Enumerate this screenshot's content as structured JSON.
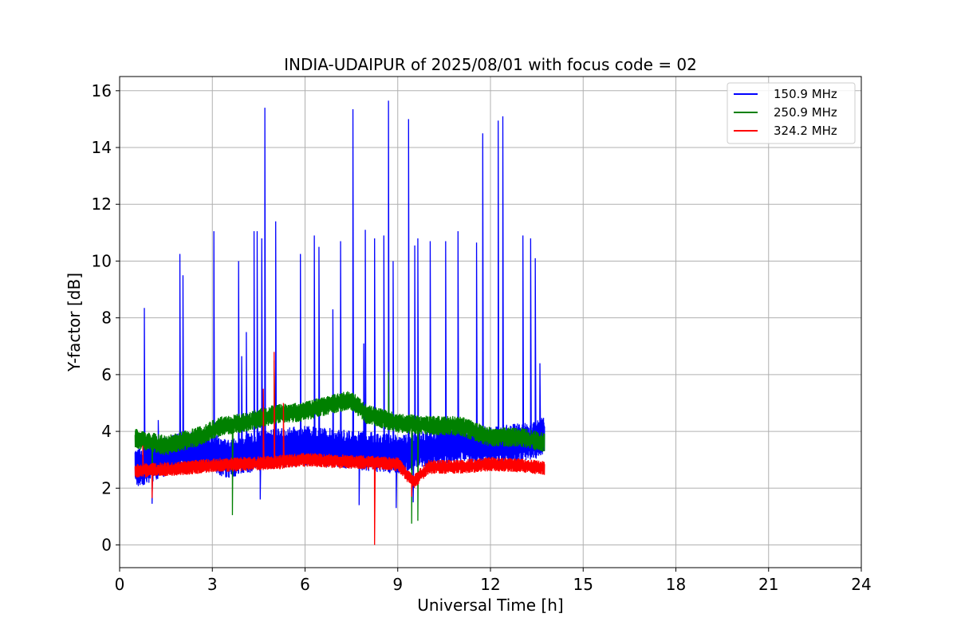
{
  "chart_data": {
    "type": "line",
    "title": "INDIA-UDAIPUR of 2025/08/01 with focus code = 02",
    "xlabel": "Universal Time [h]",
    "ylabel": "Y-factor [dB]",
    "xlim": [
      0,
      24
    ],
    "ylim": [
      -0.8,
      16.5
    ],
    "xticks": [
      0,
      3,
      6,
      9,
      12,
      15,
      18,
      21,
      24
    ],
    "yticks": [
      0,
      2,
      4,
      6,
      8,
      10,
      12,
      14,
      16
    ],
    "grid": true,
    "legend_position": "top-right",
    "data_range_x": [
      0.5,
      13.75
    ],
    "series": [
      {
        "name": "150.9 MHz",
        "color": "#0000ff",
        "baseline": [
          [
            0.5,
            2.7
          ],
          [
            2.0,
            3.3
          ],
          [
            3.0,
            3.3
          ],
          [
            3.5,
            3.0
          ],
          [
            4.0,
            3.2
          ],
          [
            5.0,
            3.4
          ],
          [
            6.0,
            3.5
          ],
          [
            7.0,
            3.4
          ],
          [
            8.0,
            3.3
          ],
          [
            9.0,
            3.2
          ],
          [
            10.0,
            3.4
          ],
          [
            11.0,
            3.6
          ],
          [
            12.0,
            3.5
          ],
          [
            13.0,
            3.6
          ],
          [
            13.75,
            3.8
          ]
        ],
        "spread": 0.7,
        "spikes": [
          [
            0.8,
            8.35
          ],
          [
            1.25,
            4.4
          ],
          [
            1.95,
            10.25
          ],
          [
            2.05,
            9.5
          ],
          [
            3.05,
            11.05
          ],
          [
            3.85,
            10.0
          ],
          [
            3.95,
            6.65
          ],
          [
            4.1,
            7.5
          ],
          [
            4.35,
            11.05
          ],
          [
            4.45,
            11.05
          ],
          [
            4.6,
            10.8
          ],
          [
            4.7,
            15.4
          ],
          [
            5.05,
            11.4
          ],
          [
            5.85,
            10.25
          ],
          [
            6.3,
            10.9
          ],
          [
            6.45,
            10.5
          ],
          [
            6.9,
            8.3
          ],
          [
            7.15,
            10.7
          ],
          [
            7.55,
            15.35
          ],
          [
            7.9,
            7.1
          ],
          [
            7.95,
            11.1
          ],
          [
            8.25,
            10.8
          ],
          [
            8.55,
            10.9
          ],
          [
            8.7,
            15.65
          ],
          [
            8.85,
            10.0
          ],
          [
            9.35,
            15.0
          ],
          [
            9.55,
            10.55
          ],
          [
            9.65,
            10.8
          ],
          [
            10.05,
            10.7
          ],
          [
            10.55,
            10.7
          ],
          [
            10.95,
            11.05
          ],
          [
            11.55,
            10.65
          ],
          [
            11.75,
            14.5
          ],
          [
            12.25,
            14.95
          ],
          [
            12.4,
            15.1
          ],
          [
            13.05,
            10.9
          ],
          [
            13.3,
            10.8
          ],
          [
            13.45,
            10.1
          ],
          [
            13.6,
            6.4
          ]
        ],
        "dips": [
          [
            4.55,
            1.6
          ],
          [
            7.75,
            1.4
          ],
          [
            8.95,
            1.3
          ],
          [
            9.5,
            1.5
          ],
          [
            1.05,
            1.45
          ]
        ]
      },
      {
        "name": "250.9 MHz",
        "color": "#008000",
        "baseline": [
          [
            0.5,
            3.75
          ],
          [
            1.5,
            3.5
          ],
          [
            2.5,
            3.8
          ],
          [
            3.3,
            4.2
          ],
          [
            4.0,
            4.3
          ],
          [
            5.0,
            4.6
          ],
          [
            6.0,
            4.7
          ],
          [
            7.0,
            5.0
          ],
          [
            7.5,
            5.1
          ],
          [
            8.0,
            4.6
          ],
          [
            9.0,
            4.3
          ],
          [
            10.0,
            4.2
          ],
          [
            11.0,
            4.2
          ],
          [
            12.0,
            3.8
          ],
          [
            13.0,
            3.8
          ],
          [
            13.75,
            3.6
          ]
        ],
        "spread": 0.35,
        "spikes": [
          [
            8.7,
            6.1
          ],
          [
            5.0,
            6.5
          ]
        ],
        "dips": [
          [
            3.65,
            1.05
          ],
          [
            9.45,
            0.75
          ],
          [
            9.65,
            0.85
          ],
          [
            1.05,
            1.8
          ]
        ]
      },
      {
        "name": "324.2 MHz",
        "color": "#ff0000",
        "baseline": [
          [
            0.5,
            2.6
          ],
          [
            2.0,
            2.7
          ],
          [
            3.0,
            2.8
          ],
          [
            4.0,
            2.85
          ],
          [
            5.0,
            2.9
          ],
          [
            6.0,
            3.0
          ],
          [
            7.0,
            2.95
          ],
          [
            8.0,
            2.9
          ],
          [
            9.0,
            2.85
          ],
          [
            9.5,
            2.2
          ],
          [
            10.0,
            2.75
          ],
          [
            11.0,
            2.75
          ],
          [
            12.0,
            2.85
          ],
          [
            13.0,
            2.8
          ],
          [
            13.75,
            2.7
          ]
        ],
        "spread": 0.25,
        "spikes": [
          [
            4.65,
            5.5
          ],
          [
            5.0,
            6.8
          ],
          [
            5.3,
            5.0
          ],
          [
            0.75,
            3.5
          ]
        ],
        "dips": [
          [
            8.25,
            0.0
          ],
          [
            1.05,
            1.65
          ],
          [
            9.45,
            1.7
          ]
        ]
      }
    ]
  }
}
